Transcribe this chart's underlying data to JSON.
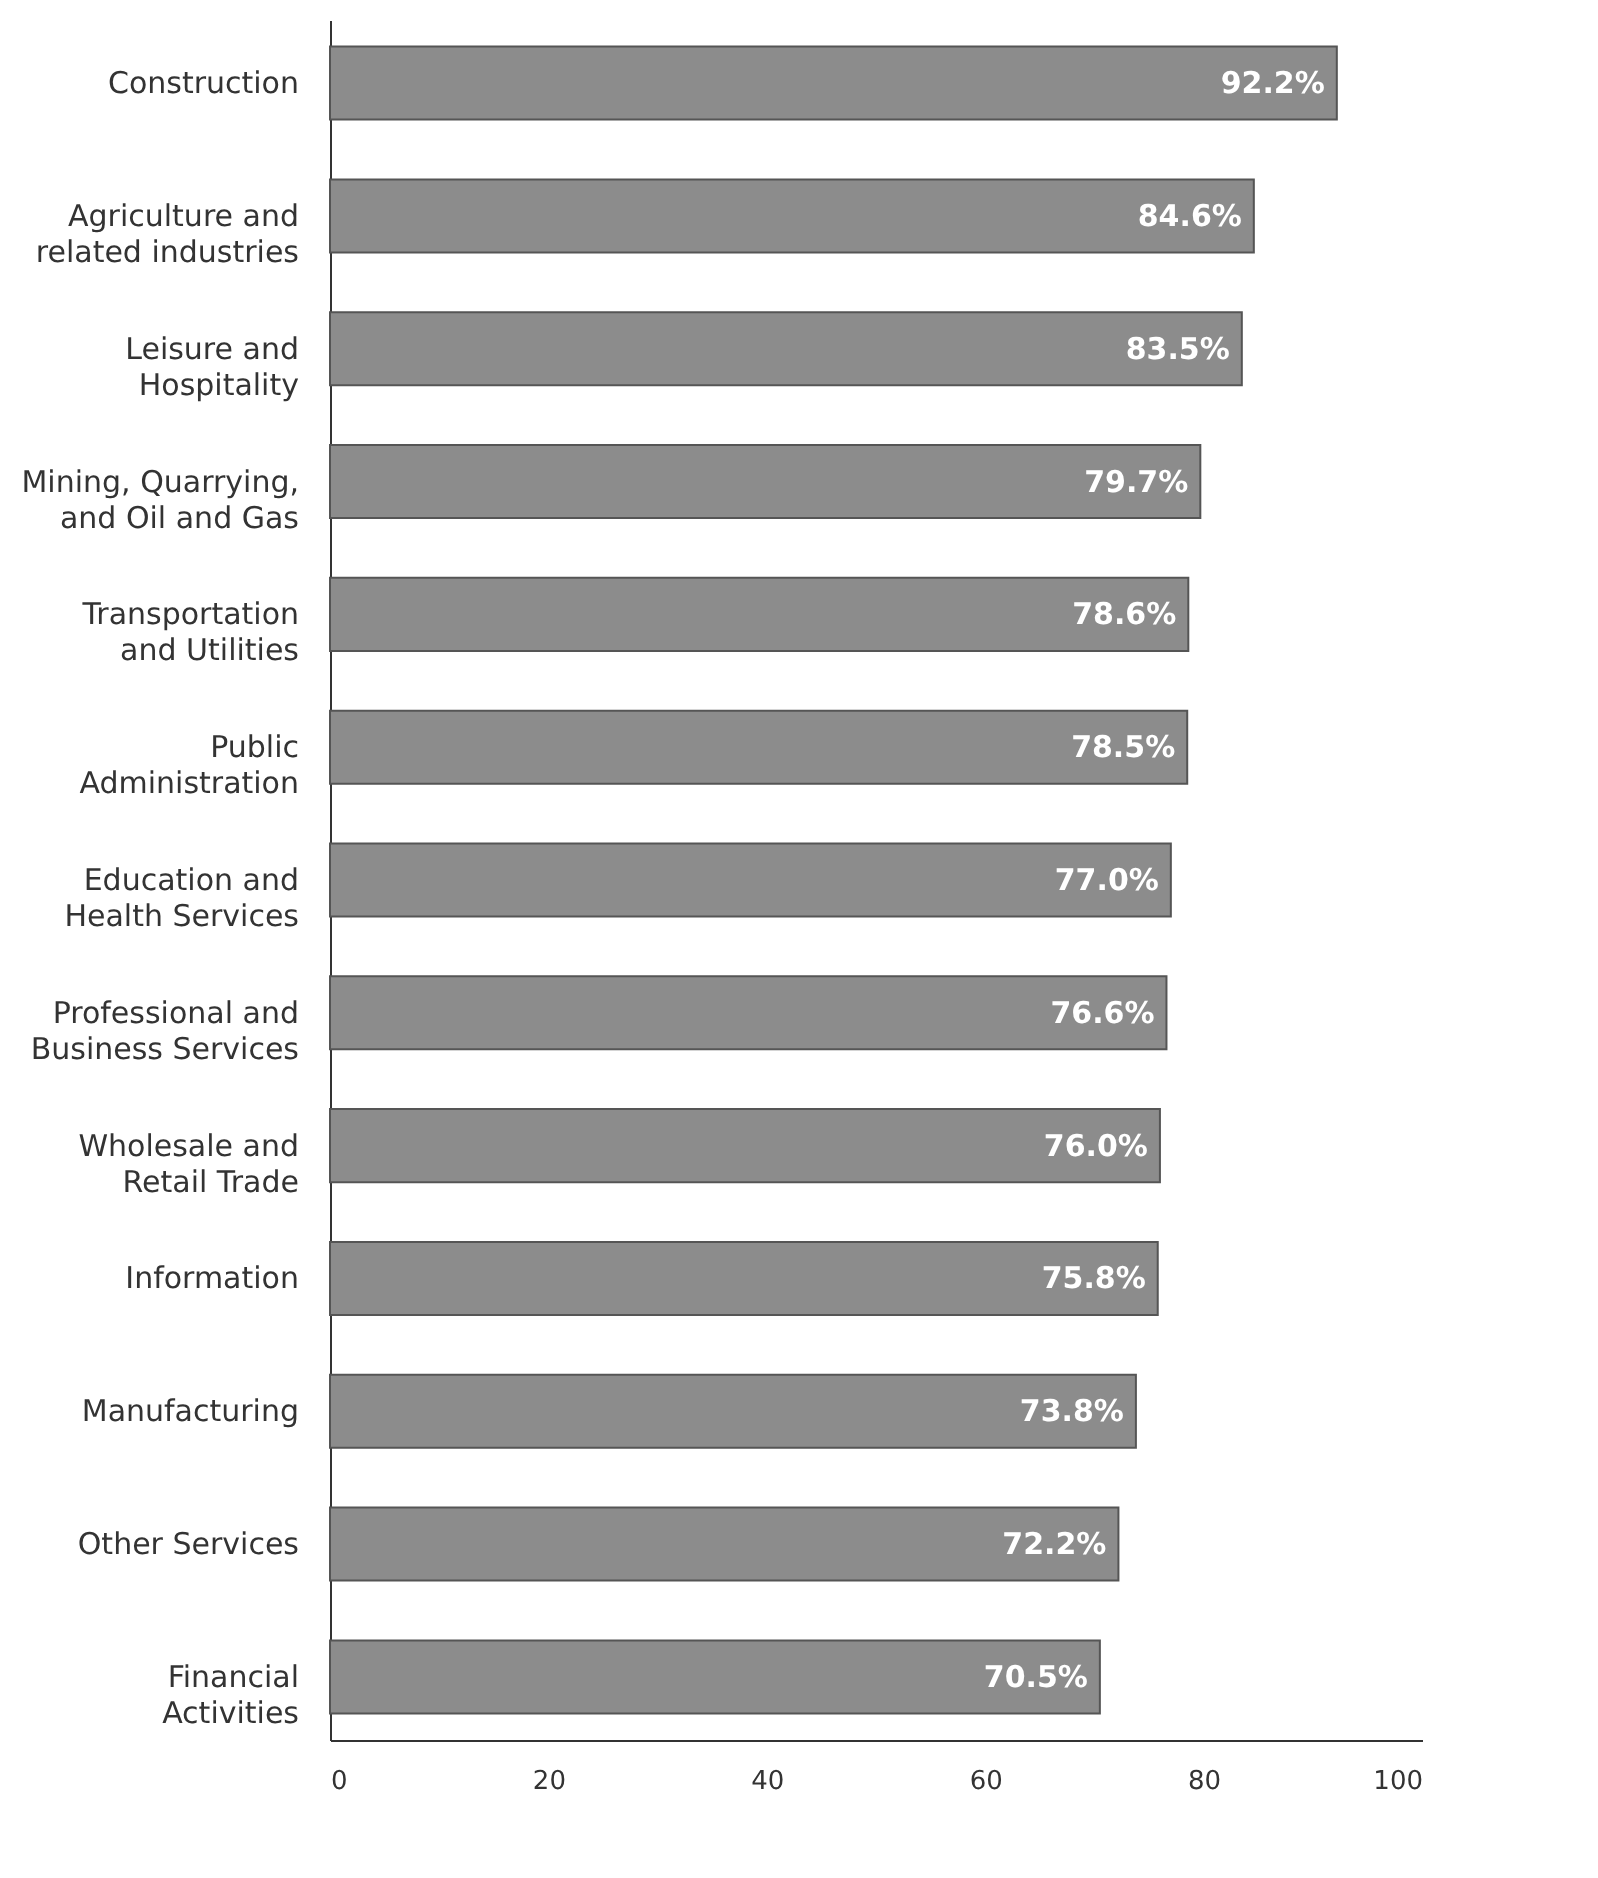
{
  "chart_data": {
    "type": "bar",
    "orientation": "horizontal",
    "categories": [
      "Construction",
      "Agriculture and\nrelated industries",
      "Leisure and\nHospitality",
      "Mining, Quarrying,\nand Oil and Gas",
      "Transportation\nand Utilities",
      "Public\nAdministration",
      "Education and\nHealth Services",
      "Professional and\nBusiness Services",
      "Wholesale and\nRetail Trade",
      "Information",
      "Manufacturing",
      "Other Services",
      "Financial\nActivities"
    ],
    "values": [
      92.2,
      84.6,
      83.5,
      79.7,
      78.6,
      78.5,
      77.0,
      76.6,
      76.0,
      75.8,
      73.8,
      72.2,
      70.5
    ],
    "value_labels": [
      "92.2%",
      "84.6%",
      "83.5%",
      "79.7%",
      "78.6%",
      "78.5%",
      "77.0%",
      "76.6%",
      "76.0%",
      "75.8%",
      "73.8%",
      "72.2%",
      "70.5%"
    ],
    "color": "#8c8c8c",
    "xlim": [
      0,
      100
    ],
    "xticks": [
      0,
      20,
      40,
      60,
      80,
      100
    ],
    "grid": false
  }
}
